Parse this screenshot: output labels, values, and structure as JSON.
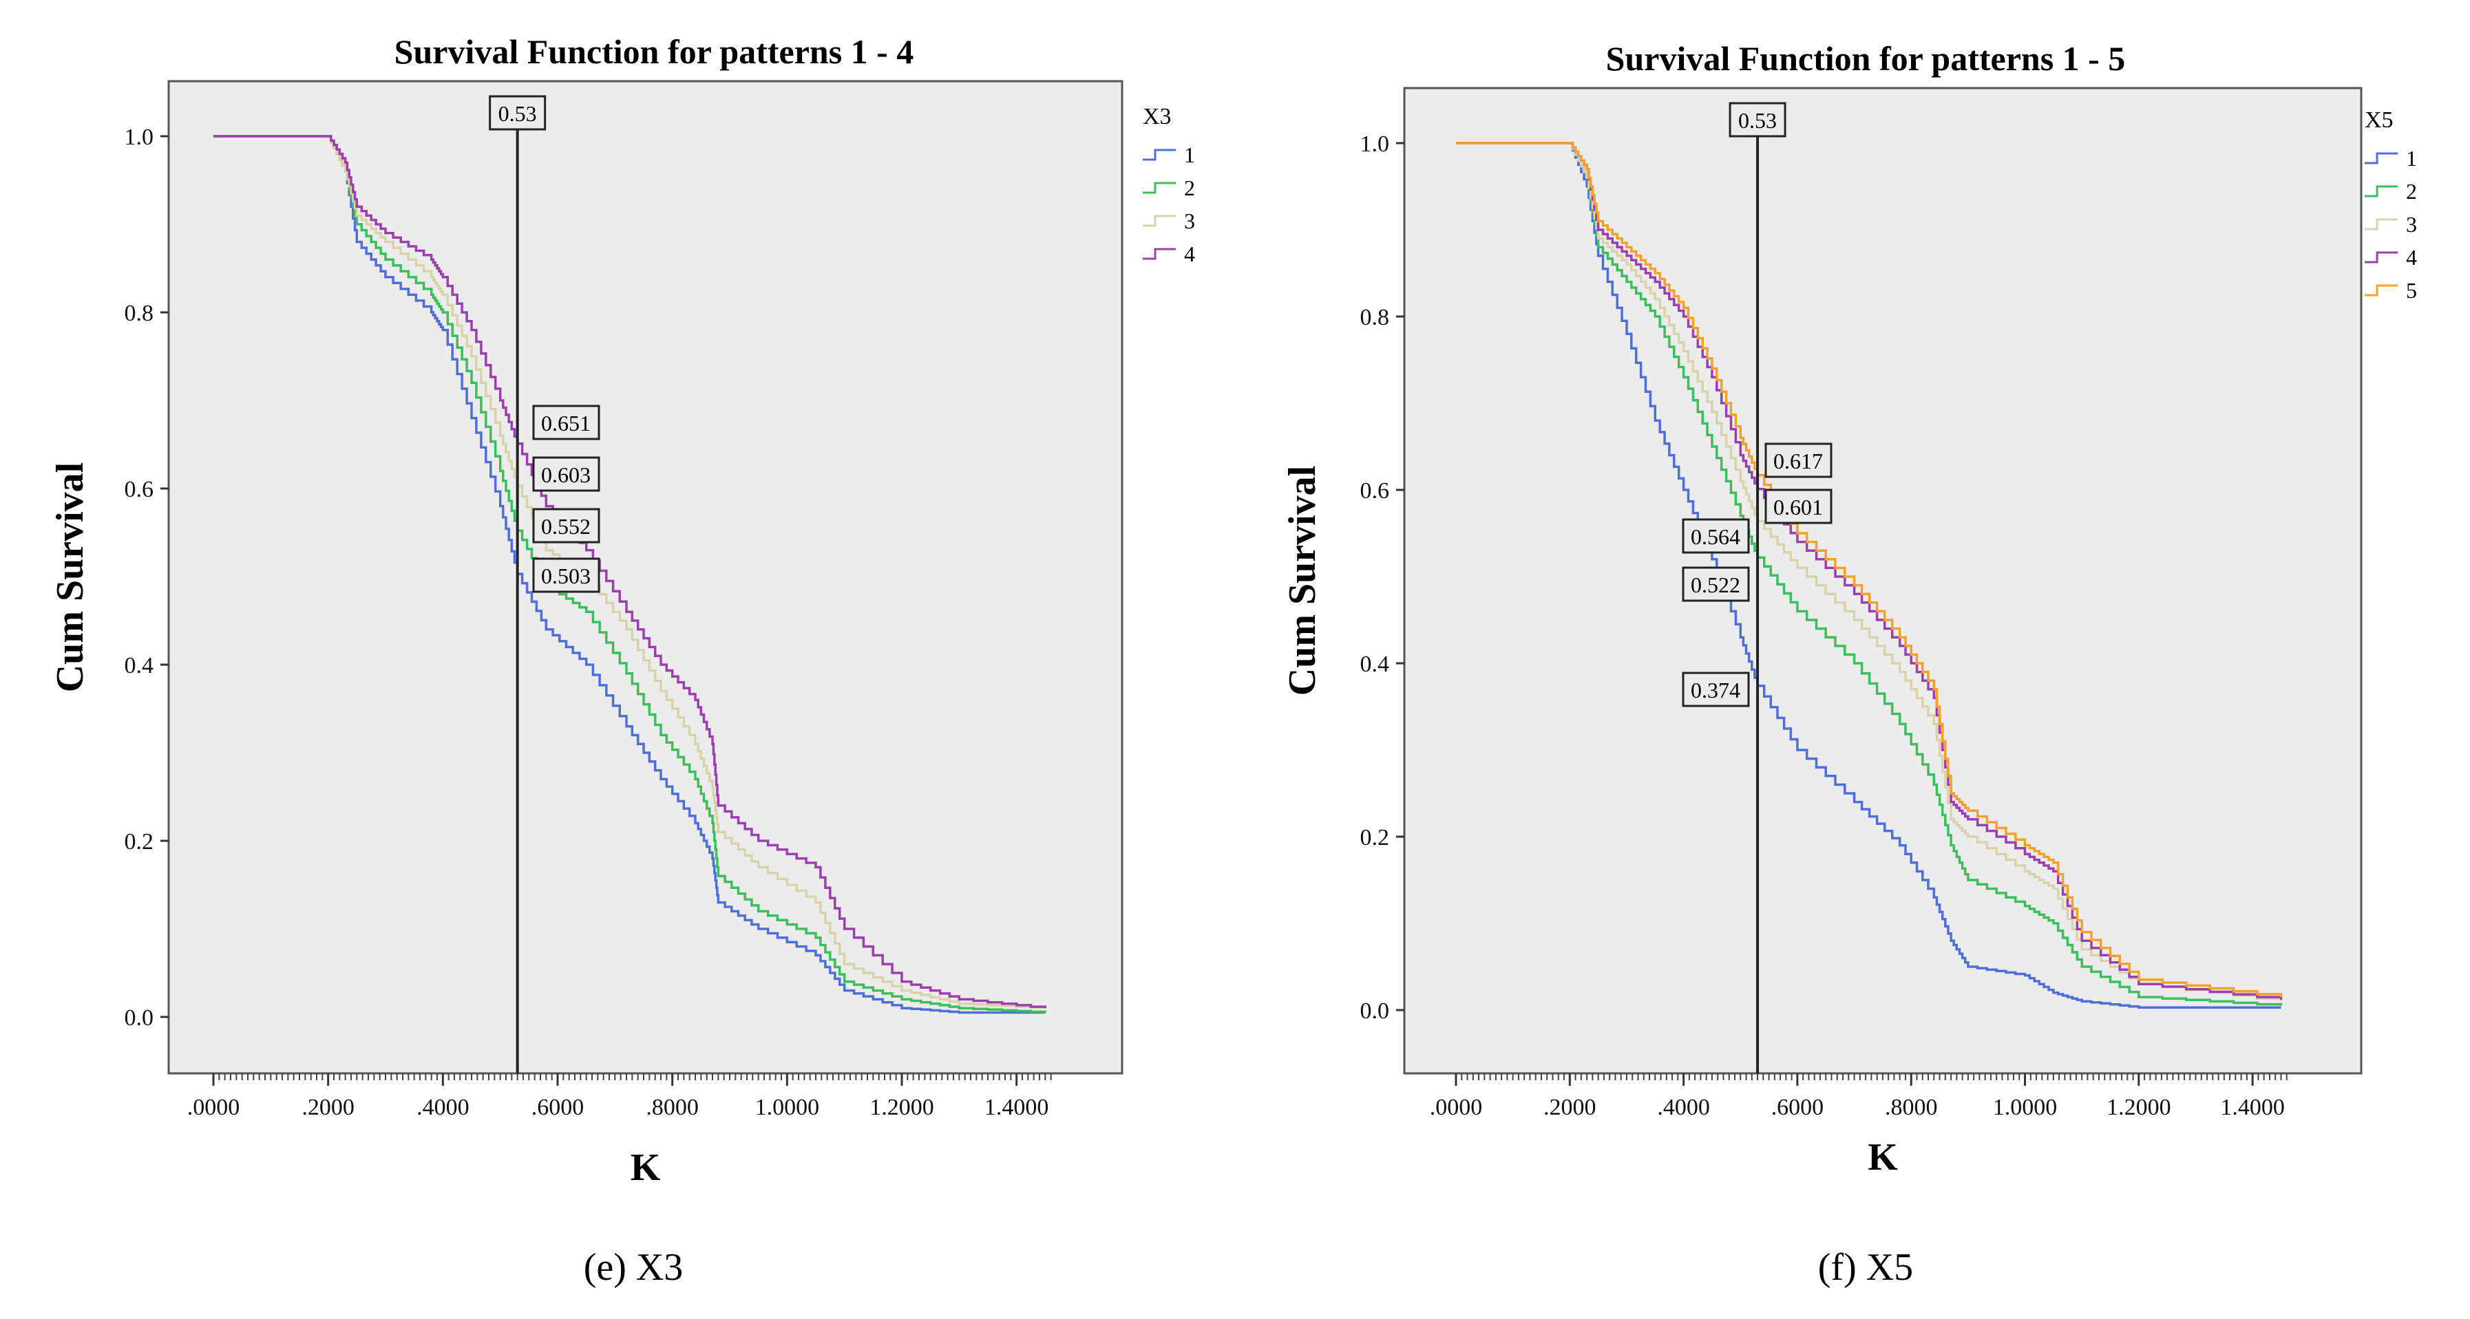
{
  "chart_data": [
    {
      "type": "line",
      "title": "Survival Function for patterns 1 - 4",
      "xlabel": "K",
      "ylabel": "Cum Survival",
      "xlim": [
        0,
        1.47
      ],
      "ylim": [
        -0.05,
        1.05
      ],
      "x_ticks": [
        ".0000",
        ".2000",
        ".4000",
        ".6000",
        ".8000",
        "1.0000",
        "1.2000",
        "1.4000"
      ],
      "y_ticks": [
        "0.0",
        "0.2",
        "0.4",
        "0.6",
        "0.8",
        "1.0"
      ],
      "legend_title": "X3",
      "legend_position": "right",
      "grid": false,
      "vline": {
        "x": 0.53,
        "label": "0.53"
      },
      "series": [
        {
          "name": "1",
          "color": "#4f6fd8",
          "x": [
            0,
            0.2,
            0.23,
            0.25,
            0.3,
            0.38,
            0.4,
            0.45,
            0.5,
            0.53,
            0.58,
            0.65,
            0.72,
            0.78,
            0.84,
            0.87,
            0.88,
            0.95,
            1.05,
            1.1,
            1.2,
            1.3,
            1.45
          ],
          "y": [
            1.0,
            1.0,
            0.96,
            0.88,
            0.84,
            0.8,
            0.78,
            0.68,
            0.58,
            0.503,
            0.44,
            0.4,
            0.33,
            0.27,
            0.22,
            0.18,
            0.13,
            0.1,
            0.07,
            0.03,
            0.01,
            0.005,
            0.005
          ]
        },
        {
          "name": "2",
          "color": "#3cbf5a",
          "x": [
            0,
            0.2,
            0.23,
            0.25,
            0.3,
            0.38,
            0.4,
            0.45,
            0.5,
            0.53,
            0.58,
            0.65,
            0.72,
            0.78,
            0.84,
            0.87,
            0.88,
            0.95,
            1.05,
            1.1,
            1.2,
            1.3,
            1.45
          ],
          "y": [
            1.0,
            1.0,
            0.96,
            0.9,
            0.86,
            0.82,
            0.8,
            0.72,
            0.62,
            0.552,
            0.49,
            0.46,
            0.39,
            0.32,
            0.27,
            0.22,
            0.16,
            0.12,
            0.09,
            0.04,
            0.02,
            0.01,
            0.005
          ]
        },
        {
          "name": "3",
          "color": "#d8d3a8",
          "x": [
            0,
            0.2,
            0.23,
            0.25,
            0.3,
            0.38,
            0.4,
            0.45,
            0.5,
            0.53,
            0.58,
            0.65,
            0.72,
            0.78,
            0.84,
            0.87,
            0.88,
            0.95,
            1.05,
            1.1,
            1.2,
            1.3,
            1.45
          ],
          "y": [
            1.0,
            1.0,
            0.96,
            0.91,
            0.88,
            0.84,
            0.82,
            0.75,
            0.66,
            0.603,
            0.53,
            0.5,
            0.44,
            0.37,
            0.31,
            0.26,
            0.21,
            0.17,
            0.13,
            0.06,
            0.03,
            0.015,
            0.01
          ]
        },
        {
          "name": "4",
          "color": "#9b3fae",
          "x": [
            0,
            0.2,
            0.23,
            0.25,
            0.3,
            0.38,
            0.4,
            0.45,
            0.5,
            0.53,
            0.58,
            0.65,
            0.72,
            0.78,
            0.84,
            0.87,
            0.88,
            0.95,
            1.05,
            1.1,
            1.2,
            1.3,
            1.45
          ],
          "y": [
            1.0,
            1.0,
            0.97,
            0.92,
            0.89,
            0.86,
            0.84,
            0.78,
            0.7,
            0.651,
            0.58,
            0.53,
            0.46,
            0.4,
            0.36,
            0.31,
            0.24,
            0.2,
            0.17,
            0.1,
            0.04,
            0.02,
            0.01
          ]
        }
      ],
      "annotations": [
        {
          "label": "0.651",
          "x": 0.53,
          "y": 0.651
        },
        {
          "label": "0.603",
          "x": 0.53,
          "y": 0.603
        },
        {
          "label": "0.552",
          "x": 0.53,
          "y": 0.552
        },
        {
          "label": "0.503",
          "x": 0.53,
          "y": 0.503
        }
      ],
      "caption": "(e) X3"
    },
    {
      "type": "line",
      "title": "Survival Function for patterns 1 - 5",
      "xlabel": "K",
      "ylabel": "Cum Survival",
      "xlim": [
        0,
        1.47
      ],
      "ylim": [
        -0.05,
        1.05
      ],
      "x_ticks": [
        ".0000",
        ".2000",
        ".4000",
        ".6000",
        ".8000",
        "1.0000",
        "1.2000",
        "1.4000"
      ],
      "y_ticks": [
        "0.0",
        "0.2",
        "0.4",
        "0.6",
        "0.8",
        "1.0"
      ],
      "legend_title": "X5",
      "legend_position": "right",
      "grid": false,
      "vline": {
        "x": 0.53,
        "label": "0.53"
      },
      "series": [
        {
          "name": "1",
          "color": "#4f6fd8",
          "x": [
            0,
            0.2,
            0.23,
            0.25,
            0.3,
            0.35,
            0.4,
            0.45,
            0.5,
            0.53,
            0.6,
            0.7,
            0.78,
            0.84,
            0.87,
            0.9,
            1.0,
            1.05,
            1.1,
            1.2,
            1.45
          ],
          "y": [
            1.0,
            1.0,
            0.95,
            0.87,
            0.78,
            0.68,
            0.6,
            0.52,
            0.43,
            0.374,
            0.3,
            0.24,
            0.19,
            0.13,
            0.08,
            0.05,
            0.04,
            0.02,
            0.01,
            0.003,
            0.003
          ]
        },
        {
          "name": "2",
          "color": "#3cbf5a",
          "x": [
            0,
            0.2,
            0.23,
            0.25,
            0.3,
            0.35,
            0.4,
            0.45,
            0.5,
            0.53,
            0.6,
            0.7,
            0.78,
            0.84,
            0.87,
            0.9,
            1.0,
            1.05,
            1.1,
            1.2,
            1.45
          ],
          "y": [
            1.0,
            1.0,
            0.96,
            0.88,
            0.84,
            0.8,
            0.73,
            0.65,
            0.57,
            0.522,
            0.46,
            0.4,
            0.33,
            0.26,
            0.19,
            0.15,
            0.12,
            0.1,
            0.05,
            0.015,
            0.005
          ]
        },
        {
          "name": "3",
          "color": "#d8d3a8",
          "x": [
            0,
            0.2,
            0.23,
            0.25,
            0.3,
            0.35,
            0.4,
            0.45,
            0.5,
            0.53,
            0.6,
            0.7,
            0.78,
            0.84,
            0.87,
            0.9,
            1.0,
            1.05,
            1.1,
            1.2,
            1.45
          ],
          "y": [
            1.0,
            1.0,
            0.96,
            0.89,
            0.86,
            0.82,
            0.76,
            0.69,
            0.61,
            0.564,
            0.51,
            0.45,
            0.39,
            0.33,
            0.22,
            0.2,
            0.16,
            0.14,
            0.07,
            0.03,
            0.01
          ]
        },
        {
          "name": "4",
          "color": "#9b3fae",
          "x": [
            0,
            0.2,
            0.23,
            0.25,
            0.3,
            0.35,
            0.4,
            0.45,
            0.5,
            0.53,
            0.6,
            0.7,
            0.78,
            0.84,
            0.87,
            0.9,
            1.0,
            1.05,
            1.1,
            1.2,
            1.45
          ],
          "y": [
            1.0,
            1.0,
            0.97,
            0.9,
            0.87,
            0.84,
            0.8,
            0.73,
            0.64,
            0.601,
            0.54,
            0.48,
            0.42,
            0.36,
            0.24,
            0.22,
            0.18,
            0.16,
            0.08,
            0.03,
            0.012
          ]
        },
        {
          "name": "5",
          "color": "#f5a12c",
          "x": [
            0,
            0.2,
            0.23,
            0.25,
            0.3,
            0.35,
            0.4,
            0.45,
            0.5,
            0.53,
            0.6,
            0.7,
            0.78,
            0.84,
            0.87,
            0.9,
            1.0,
            1.05,
            1.1,
            1.2,
            1.45
          ],
          "y": [
            1.0,
            1.0,
            0.97,
            0.91,
            0.88,
            0.85,
            0.81,
            0.74,
            0.66,
            0.617,
            0.55,
            0.49,
            0.43,
            0.37,
            0.25,
            0.23,
            0.19,
            0.17,
            0.09,
            0.035,
            0.015
          ]
        }
      ],
      "annotations": [
        {
          "label": "0.617",
          "x": 0.53,
          "y": 0.617
        },
        {
          "label": "0.601",
          "x": 0.53,
          "y": 0.601
        },
        {
          "label": "0.564",
          "x": 0.53,
          "y": 0.564
        },
        {
          "label": "0.522",
          "x": 0.53,
          "y": 0.522
        },
        {
          "label": "0.374",
          "x": 0.53,
          "y": 0.374
        }
      ],
      "caption": "(f) X5"
    }
  ],
  "colors": {
    "plot_background": "#ececec",
    "axis": "#555555",
    "vline": "#222222"
  }
}
